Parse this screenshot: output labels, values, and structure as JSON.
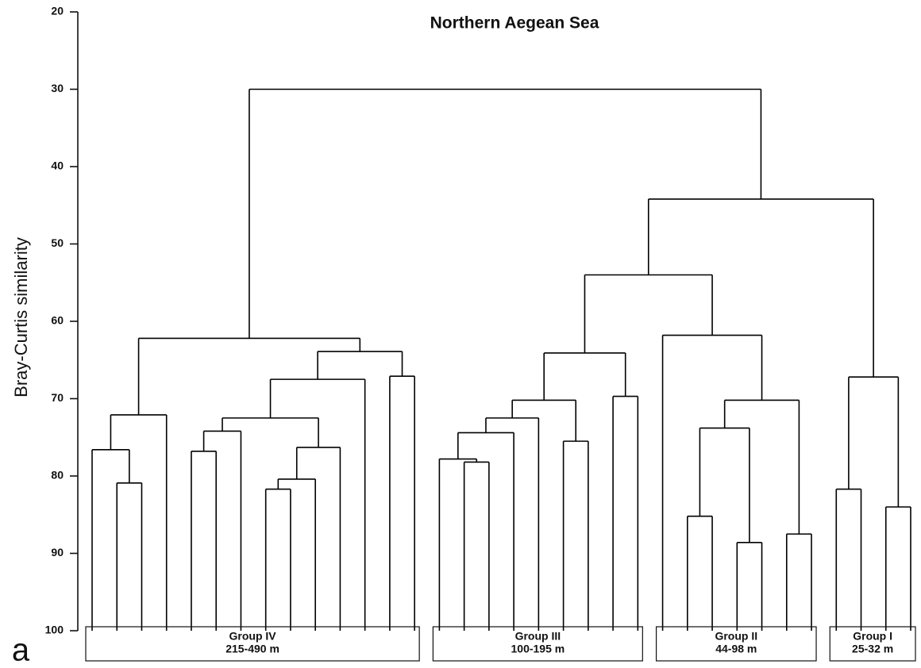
{
  "chart_data": {
    "type": "dendrogram",
    "title": "Northern Aegean Sea",
    "ylabel": "Bray-Curtis similarity",
    "panel_label": "a",
    "ylim": [
      20,
      100
    ],
    "yticks": [
      20,
      30,
      40,
      50,
      60,
      70,
      80,
      90,
      100
    ],
    "color": "#000000",
    "tree": {
      "similarity": 30,
      "children": [
        {
          "similarity": 62.2,
          "group": {
            "label": "Group IV",
            "range": "215-490 m"
          },
          "children": [
            {
              "similarity": 72.1,
              "children": [
                {
                  "similarity": 76.6,
                  "children": [
                    null,
                    {
                      "similarity": 80.9,
                      "children": [
                        null,
                        null
                      ]
                    }
                  ]
                },
                null
              ]
            },
            {
              "similarity": 63.9,
              "children": [
                {
                  "similarity": 67.5,
                  "children": [
                    {
                      "similarity": 72.5,
                      "children": [
                        {
                          "similarity": 74.2,
                          "children": [
                            {
                              "similarity": 76.8,
                              "children": [
                                null,
                                null
                              ]
                            },
                            null
                          ]
                        },
                        {
                          "similarity": 76.3,
                          "children": [
                            {
                              "similarity": 80.4,
                              "children": [
                                {
                                  "similarity": 81.7,
                                  "children": [
                                    null,
                                    null
                                  ]
                                },
                                null
                              ]
                            },
                            null
                          ]
                        }
                      ]
                    },
                    null
                  ]
                },
                {
                  "similarity": 67.1,
                  "children": [
                    null,
                    null
                  ]
                }
              ]
            }
          ]
        },
        {
          "similarity": 44.2,
          "children": [
            {
              "similarity": 54.0,
              "children": [
                {
                  "similarity": 64.1,
                  "group": {
                    "label": "Group III",
                    "range": "100-195 m"
                  },
                  "children": [
                    {
                      "similarity": 70.2,
                      "children": [
                        {
                          "similarity": 72.5,
                          "children": [
                            {
                              "similarity": 74.4,
                              "children": [
                                {
                                  "similarity": 77.8,
                                  "children": [
                                    null,
                                    {
                                      "similarity": 78.2,
                                      "children": [
                                        null,
                                        null
                                      ]
                                    }
                                  ]
                                },
                                null
                              ]
                            },
                            null
                          ]
                        },
                        {
                          "similarity": 75.5,
                          "children": [
                            null,
                            null
                          ]
                        }
                      ]
                    },
                    {
                      "similarity": 69.7,
                      "children": [
                        null,
                        null
                      ]
                    }
                  ]
                },
                {
                  "similarity": 61.8,
                  "group": {
                    "label": "Group II",
                    "range": "44-98 m"
                  },
                  "children": [
                    null,
                    {
                      "similarity": 70.2,
                      "children": [
                        {
                          "similarity": 73.8,
                          "children": [
                            {
                              "similarity": 85.2,
                              "children": [
                                null,
                                null
                              ]
                            },
                            {
                              "similarity": 88.6,
                              "children": [
                                null,
                                null
                              ]
                            }
                          ]
                        },
                        {
                          "similarity": 87.5,
                          "children": [
                            null,
                            null
                          ]
                        }
                      ]
                    }
                  ]
                }
              ]
            },
            {
              "similarity": 67.2,
              "group": {
                "label": "Group I",
                "range": "25-32 m"
              },
              "children": [
                {
                  "similarity": 81.7,
                  "children": [
                    null,
                    null
                  ]
                },
                {
                  "similarity": 84.0,
                  "children": [
                    null,
                    null
                  ]
                }
              ]
            }
          ]
        }
      ]
    }
  }
}
